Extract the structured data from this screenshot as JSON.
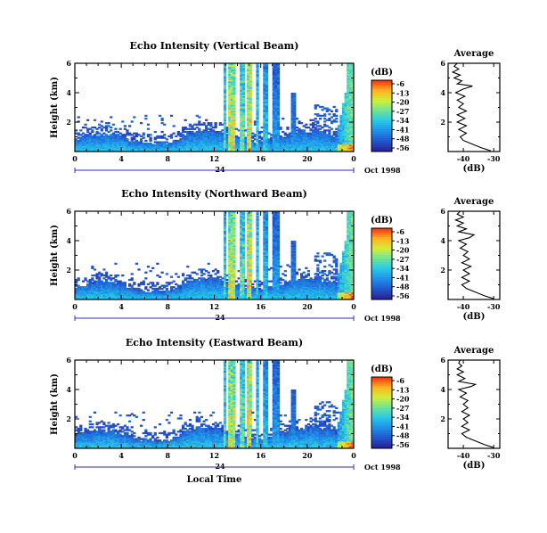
{
  "chart_data": [
    {
      "type": "heatmap",
      "title": "Echo Intensity (Vertical Beam)",
      "xlabel": "",
      "ylabel": "Height (km)",
      "xlim": [
        0,
        24
      ],
      "ylim": [
        0,
        6
      ],
      "xticks": [
        "0",
        "4",
        "8",
        "12",
        "16",
        "20",
        "0"
      ],
      "yticks": [
        "2",
        "4",
        "6"
      ],
      "date_label": "24",
      "date_suffix": "Oct 1998",
      "colorbar_label": "(dB)",
      "colorbar_ticks": [
        "-6",
        "-13",
        "-20",
        "-27",
        "-34",
        "-41",
        "-48",
        "-56"
      ],
      "profile": {
        "title": "Average",
        "xlabel": "(dB)",
        "xticks": [
          "-40",
          "-30"
        ],
        "yticks": [
          "2",
          "4",
          "6"
        ],
        "points": [
          [
            -31,
            0.05
          ],
          [
            -34,
            0.25
          ],
          [
            -37,
            0.5
          ],
          [
            -40,
            0.75
          ],
          [
            -41,
            1.0
          ],
          [
            -39,
            1.25
          ],
          [
            -41.5,
            1.5
          ],
          [
            -39,
            1.75
          ],
          [
            -42,
            2.0
          ],
          [
            -39.5,
            2.25
          ],
          [
            -42,
            2.5
          ],
          [
            -39,
            2.75
          ],
          [
            -41.5,
            3.0
          ],
          [
            -40,
            3.25
          ],
          [
            -42,
            3.5
          ],
          [
            -39.5,
            3.75
          ],
          [
            -42.5,
            4.0
          ],
          [
            -40,
            4.25
          ],
          [
            -37,
            4.45
          ],
          [
            -42,
            4.6
          ],
          [
            -40.5,
            4.8
          ],
          [
            -43,
            5.0
          ],
          [
            -41,
            5.2
          ],
          [
            -43.5,
            5.4
          ],
          [
            -41.5,
            5.6
          ],
          [
            -43,
            5.8
          ],
          [
            -42,
            6.0
          ]
        ]
      }
    },
    {
      "type": "heatmap",
      "title": "Echo Intensity (Northward Beam)",
      "xlabel": "",
      "ylabel": "Height (km)",
      "xlim": [
        0,
        24
      ],
      "ylim": [
        0,
        6
      ],
      "xticks": [
        "0",
        "4",
        "8",
        "12",
        "16",
        "20",
        "0"
      ],
      "yticks": [
        "2",
        "4",
        "6"
      ],
      "date_label": "24",
      "date_suffix": "Oct 1998",
      "colorbar_label": "(dB)",
      "colorbar_ticks": [
        "-6",
        "-13",
        "-20",
        "-27",
        "-34",
        "-41",
        "-48",
        "-56"
      ],
      "profile": {
        "title": "Average",
        "xlabel": "(dB)",
        "xticks": [
          "-40",
          "-30"
        ],
        "yticks": [
          "2",
          "4",
          "6"
        ],
        "points": [
          [
            -30,
            0.05
          ],
          [
            -33,
            0.25
          ],
          [
            -36,
            0.5
          ],
          [
            -39,
            0.75
          ],
          [
            -40.5,
            1.0
          ],
          [
            -38,
            1.25
          ],
          [
            -40.5,
            1.5
          ],
          [
            -38,
            1.75
          ],
          [
            -40,
            2.0
          ],
          [
            -37.5,
            2.25
          ],
          [
            -40.5,
            2.5
          ],
          [
            -38,
            2.75
          ],
          [
            -40,
            3.0
          ],
          [
            -38.5,
            3.25
          ],
          [
            -41,
            3.5
          ],
          [
            -39,
            3.75
          ],
          [
            -41.5,
            4.0
          ],
          [
            -38,
            4.2
          ],
          [
            -36.5,
            4.4
          ],
          [
            -41.5,
            4.6
          ],
          [
            -39,
            4.8
          ],
          [
            -42,
            5.0
          ],
          [
            -40,
            5.2
          ],
          [
            -42.5,
            5.4
          ],
          [
            -40,
            5.6
          ],
          [
            -42,
            5.8
          ],
          [
            -41,
            6.0
          ]
        ]
      }
    },
    {
      "type": "heatmap",
      "title": "Echo Intensity (Eastward Beam)",
      "xlabel": "Local Time",
      "ylabel": "Height (km)",
      "xlim": [
        0,
        24
      ],
      "ylim": [
        0,
        6
      ],
      "xticks": [
        "0",
        "4",
        "8",
        "12",
        "16",
        "20",
        "0"
      ],
      "yticks": [
        "2",
        "4",
        "6"
      ],
      "date_label": "24",
      "date_suffix": "Oct 1998",
      "colorbar_label": "(dB)",
      "colorbar_ticks": [
        "-6",
        "-13",
        "-20",
        "-27",
        "-34",
        "-41",
        "-48",
        "-56"
      ],
      "profile": {
        "title": "Average",
        "xlabel": "(dB)",
        "xticks": [
          "-40",
          "-30"
        ],
        "yticks": [
          "2",
          "4",
          "6"
        ],
        "points": [
          [
            -30,
            0.05
          ],
          [
            -33,
            0.25
          ],
          [
            -36,
            0.5
          ],
          [
            -39,
            0.75
          ],
          [
            -40.5,
            1.0
          ],
          [
            -38,
            1.25
          ],
          [
            -40.5,
            1.5
          ],
          [
            -38.5,
            1.75
          ],
          [
            -40,
            2.0
          ],
          [
            -38,
            2.25
          ],
          [
            -40.5,
            2.5
          ],
          [
            -38.5,
            2.75
          ],
          [
            -40,
            3.0
          ],
          [
            -38.5,
            3.25
          ],
          [
            -41,
            3.5
          ],
          [
            -39,
            3.75
          ],
          [
            -41.5,
            4.0
          ],
          [
            -37.5,
            4.2
          ],
          [
            -36,
            4.35
          ],
          [
            -41.5,
            4.55
          ],
          [
            -39.5,
            4.75
          ],
          [
            -42,
            5.0
          ],
          [
            -40,
            5.2
          ],
          [
            -42,
            5.4
          ],
          [
            -40.5,
            5.6
          ],
          [
            -41.5,
            5.8
          ],
          [
            -41,
            6.0
          ]
        ]
      }
    }
  ],
  "colors": {
    "colormap": [
      "#2a1f8f",
      "#2255cc",
      "#1f8fe8",
      "#28c8e8",
      "#6de39b",
      "#d2ee3a",
      "#ffb020",
      "#f03010"
    ],
    "date_axis": "#2b2bc0"
  }
}
